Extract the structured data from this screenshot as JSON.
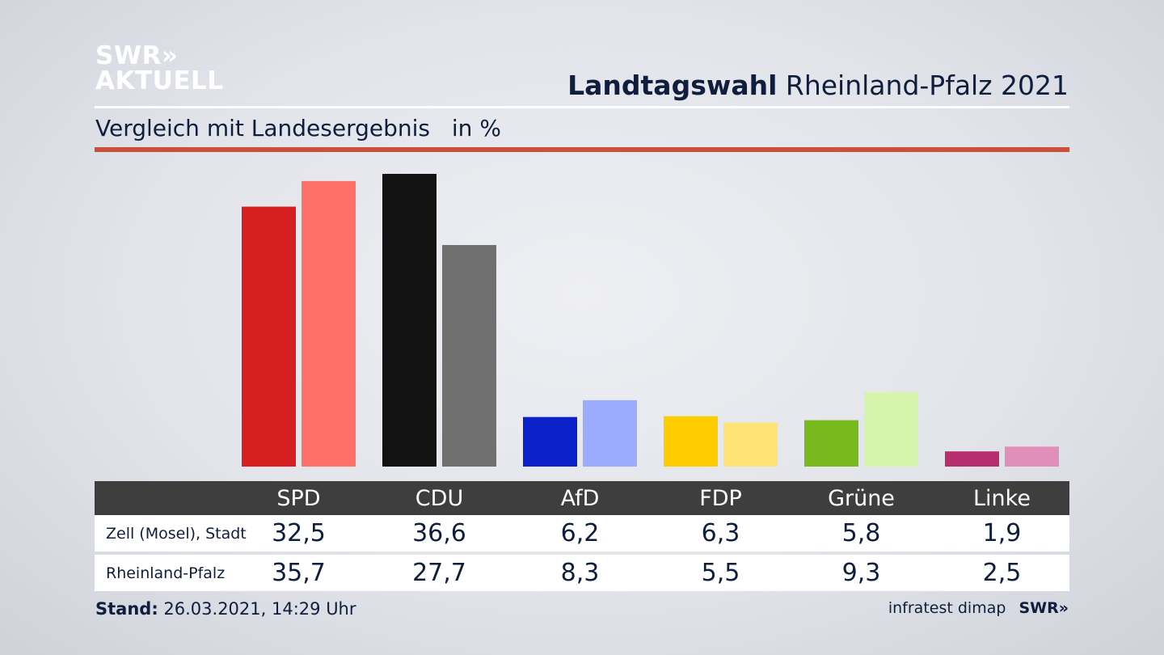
{
  "header": {
    "logo_line1": "SWR»",
    "logo_line2": "AKTUELL",
    "title_bold": "Landtagswahl",
    "title_rest": "Rheinland-Pfalz 2021",
    "subtitle": "Vergleich mit Landesergebnis",
    "unit": "in %"
  },
  "footer": {
    "stand_label": "Stand:",
    "stand_value": "26.03.2021, 14:29 Uhr",
    "source": "infratest dimap",
    "logo": "SWR»"
  },
  "chart_data": {
    "type": "bar",
    "categories": [
      "SPD",
      "CDU",
      "AfD",
      "FDP",
      "Grüne",
      "Linke"
    ],
    "series": [
      {
        "name": "Zell (Mosel), Stadt",
        "values": [
          32.5,
          36.6,
          6.2,
          6.3,
          5.8,
          1.9
        ],
        "colors": [
          "#d61f1f",
          "#121212",
          "#0a20c8",
          "#ffcc00",
          "#78b91e",
          "#b82d6e"
        ]
      },
      {
        "name": "Rheinland-Pfalz",
        "values": [
          35.7,
          27.7,
          8.3,
          5.5,
          9.3,
          2.5
        ],
        "colors": [
          "#ff7069",
          "#707070",
          "#9dabff",
          "#ffe375",
          "#d5f5ac",
          "#e08fbb"
        ]
      }
    ],
    "value_labels": [
      [
        "32,5",
        "36,6",
        "6,2",
        "6,3",
        "5,8",
        "1,9"
      ],
      [
        "35,7",
        "27,7",
        "8,3",
        "5,5",
        "9,3",
        "2,5"
      ]
    ],
    "ylim": [
      0,
      40
    ],
    "grid": false,
    "legend": "table below chart"
  }
}
